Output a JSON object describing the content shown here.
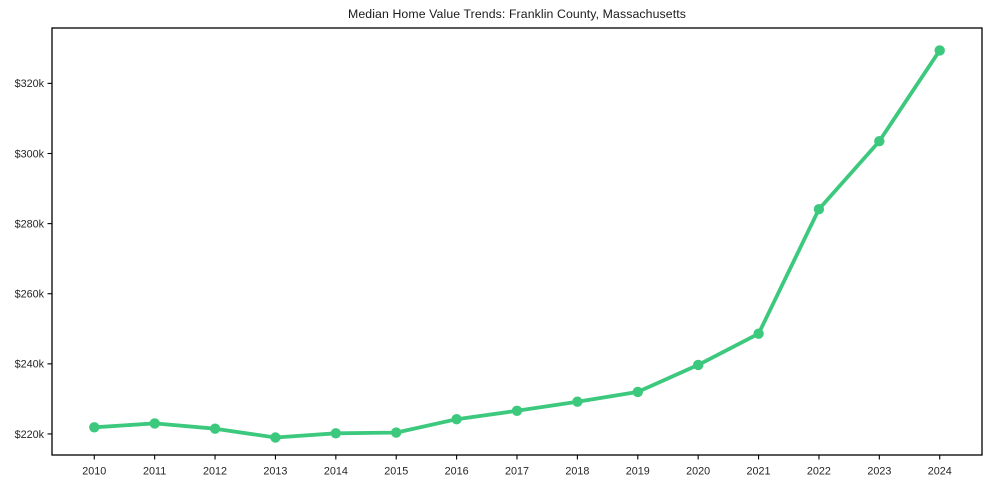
{
  "chart_data": {
    "type": "line",
    "title": "Median Home Value Trends: Franklin County, Massachusetts",
    "xlabel": "",
    "ylabel": "",
    "x": [
      2010,
      2011,
      2012,
      2013,
      2014,
      2015,
      2016,
      2017,
      2018,
      2019,
      2020,
      2021,
      2022,
      2023,
      2024
    ],
    "xtick_labels": [
      "2010",
      "2011",
      "2012",
      "2013",
      "2014",
      "2015",
      "2016",
      "2017",
      "2018",
      "2019",
      "2020",
      "2021",
      "2022",
      "2023",
      "2024"
    ],
    "series": [
      {
        "name": "Median home value",
        "values_k": [
          221.9,
          223.0,
          221.5,
          219.0,
          220.2,
          220.4,
          224.2,
          226.6,
          229.2,
          232.0,
          239.7,
          248.6,
          284.1,
          303.5,
          329.4
        ]
      }
    ],
    "yticks_k": [
      220,
      240,
      260,
      280,
      300,
      320
    ],
    "ytick_labels": [
      "$220k",
      "$240k",
      "$260k",
      "$280k",
      "$300k",
      "$320k"
    ],
    "xlim": [
      2009.3,
      2024.7
    ],
    "ylim_k": [
      214.0,
      335.8
    ],
    "grid": false,
    "legend": "none",
    "style": {
      "line_color": "#3cc97e",
      "marker_color": "#3cc97e",
      "marker_shape": "circle",
      "axis_color": "#000000",
      "tick_text_color": "#262626",
      "background": "#ffffff"
    }
  }
}
